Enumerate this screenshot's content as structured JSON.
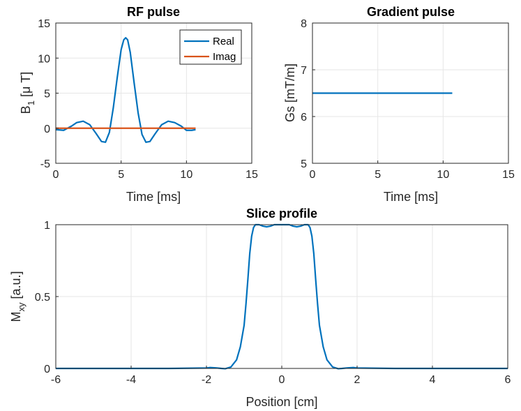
{
  "colors": {
    "real": "#0072BD",
    "imag": "#D95319",
    "grid": "#e6e6e6",
    "axis": "#262626"
  },
  "chart_data": [
    {
      "id": "rf",
      "type": "line",
      "title": "RF pulse",
      "xlabel": "Time [ms]",
      "ylabel_main": "B",
      "ylabel_sub": "1",
      "ylabel_tail": " [μ T]",
      "xlim": [
        0,
        15
      ],
      "ylim": [
        -5,
        15
      ],
      "xticks": [
        0,
        5,
        10,
        15
      ],
      "yticks": [
        -5,
        0,
        5,
        10,
        15
      ],
      "grid": true,
      "legend": {
        "position": "top-right",
        "entries": [
          "Real",
          "Imag"
        ]
      },
      "series": [
        {
          "name": "Real",
          "color": "#0072BD",
          "x": [
            0,
            0.6,
            1.2,
            1.6,
            2.1,
            2.6,
            3.1,
            3.5,
            3.8,
            4.1,
            4.4,
            4.7,
            5.0,
            5.2,
            5.35,
            5.5,
            5.7,
            6.0,
            6.3,
            6.6,
            6.9,
            7.2,
            7.6,
            8.1,
            8.6,
            9.1,
            9.6,
            10.0,
            10.4,
            10.7
          ],
          "y": [
            -0.2,
            -0.3,
            0.3,
            0.8,
            1.0,
            0.5,
            -0.8,
            -1.9,
            -2.0,
            -0.6,
            2.9,
            7.2,
            11.2,
            12.6,
            12.9,
            12.6,
            10.8,
            6.4,
            2.2,
            -0.9,
            -2.0,
            -1.9,
            -0.8,
            0.5,
            1.0,
            0.8,
            0.3,
            -0.3,
            -0.3,
            -0.2
          ]
        },
        {
          "name": "Imag",
          "color": "#D95319",
          "x": [
            0,
            10.7
          ],
          "y": [
            0,
            0
          ]
        }
      ]
    },
    {
      "id": "grad",
      "type": "line",
      "title": "Gradient pulse",
      "xlabel": "Time [ms]",
      "ylabel": "Gs [mT/m]",
      "xlim": [
        0,
        15
      ],
      "ylim": [
        5,
        8
      ],
      "xticks": [
        0,
        5,
        10,
        15
      ],
      "yticks": [
        5,
        6,
        7,
        8
      ],
      "grid": true,
      "series": [
        {
          "name": "Gs",
          "color": "#0072BD",
          "x": [
            0,
            10.7
          ],
          "y": [
            6.5,
            6.5
          ]
        }
      ]
    },
    {
      "id": "slice",
      "type": "line",
      "title": "Slice profile",
      "xlabel": "Position [cm]",
      "ylabel_main": "M",
      "ylabel_sub": "xy",
      "ylabel_tail": " [a.u.]",
      "xlim": [
        -6,
        6
      ],
      "ylim": [
        0,
        1
      ],
      "xticks": [
        -6,
        -4,
        -2,
        0,
        2,
        4,
        6
      ],
      "yticks": [
        0,
        0.5,
        1
      ],
      "grid": true,
      "series": [
        {
          "name": "Mxy",
          "color": "#0072BD",
          "x": [
            -6,
            -3,
            -2,
            -1.9,
            -1.75,
            -1.6,
            -1.5,
            -1.35,
            -1.2,
            -1.1,
            -1.0,
            -0.95,
            -0.9,
            -0.85,
            -0.8,
            -0.75,
            -0.7,
            -0.6,
            -0.5,
            -0.4,
            -0.3,
            -0.2,
            0,
            0.2,
            0.3,
            0.4,
            0.5,
            0.6,
            0.7,
            0.75,
            0.8,
            0.85,
            0.9,
            0.95,
            1.0,
            1.1,
            1.2,
            1.35,
            1.5,
            1.6,
            1.75,
            1.9,
            2.0,
            3.0,
            6.0
          ],
          "y": [
            0,
            0,
            0.003,
            0.006,
            0.004,
            0,
            -0.002,
            0.01,
            0.06,
            0.15,
            0.3,
            0.45,
            0.62,
            0.8,
            0.92,
            0.98,
            1.0,
            1.0,
            0.99,
            0.985,
            0.99,
            1.0,
            1.0,
            1.0,
            0.99,
            0.985,
            0.99,
            1.0,
            1.0,
            0.98,
            0.92,
            0.8,
            0.62,
            0.45,
            0.3,
            0.15,
            0.06,
            0.01,
            -0.002,
            0,
            0.004,
            0.006,
            0.003,
            0,
            0
          ]
        }
      ]
    }
  ]
}
